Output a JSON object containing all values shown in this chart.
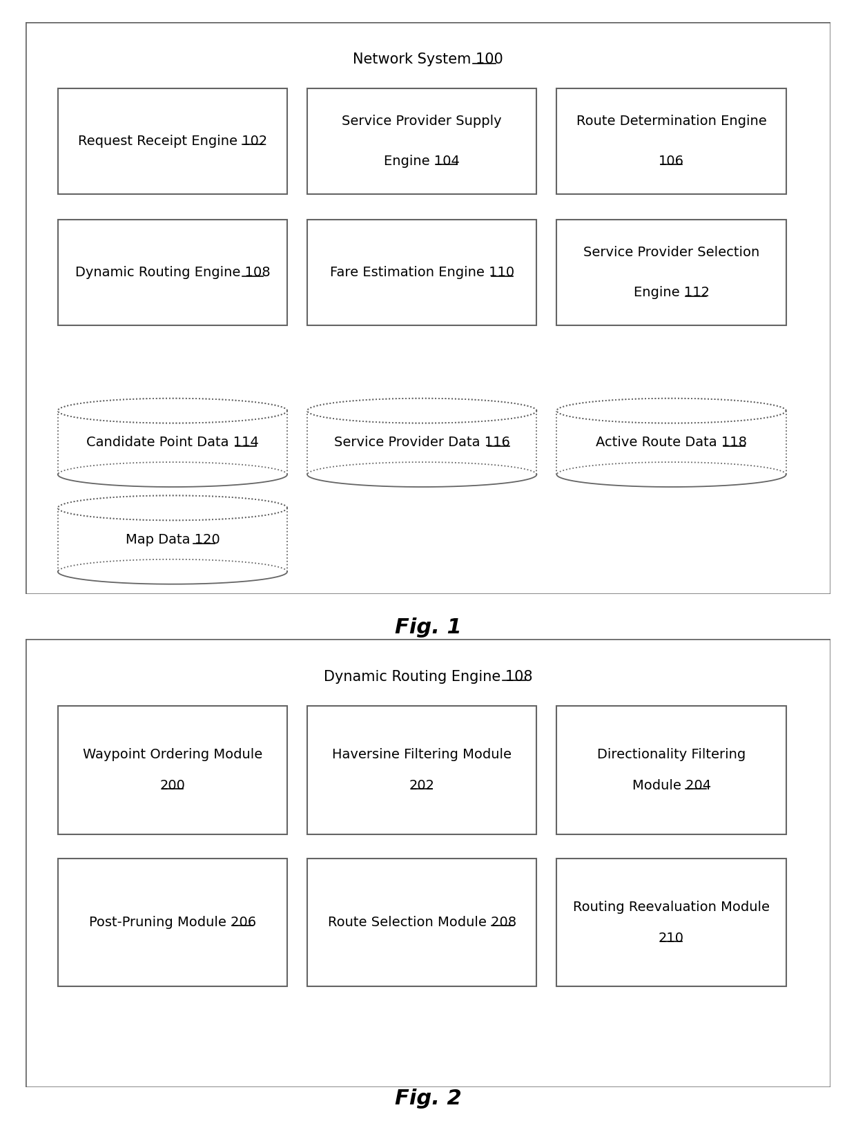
{
  "fig1_title_pre": "Network System ",
  "fig1_title_num": "100",
  "fig2_title_pre": "Dynamic Routing Engine ",
  "fig2_title_num": "108",
  "fig1_label": "Fig. 1",
  "fig2_label": "Fig. 2",
  "fig1_boxes": [
    {
      "line1": "Request Receipt Engine ",
      "num": "102",
      "line2": null,
      "row": 0,
      "col": 0
    },
    {
      "line1": "Service Provider Supply",
      "num": "104",
      "line2": "Engine ",
      "row": 0,
      "col": 1
    },
    {
      "line1": "Route Determination Engine",
      "num": "106",
      "line2": "",
      "row": 0,
      "col": 2
    },
    {
      "line1": "Dynamic Routing Engine ",
      "num": "108",
      "line2": null,
      "row": 1,
      "col": 0
    },
    {
      "line1": "Fare Estimation Engine ",
      "num": "110",
      "line2": null,
      "row": 1,
      "col": 1
    },
    {
      "line1": "Service Provider Selection",
      "num": "112",
      "line2": "Engine ",
      "row": 1,
      "col": 2
    }
  ],
  "fig1_cylinders": [
    {
      "label": "Candidate Point Data ",
      "num": "114",
      "row": 0,
      "col": 0
    },
    {
      "label": "Service Provider Data ",
      "num": "116",
      "row": 0,
      "col": 1
    },
    {
      "label": "Active Route Data ",
      "num": "118",
      "row": 0,
      "col": 2
    },
    {
      "label": "Map Data ",
      "num": "120",
      "row": 1,
      "col": 0
    }
  ],
  "fig2_boxes": [
    {
      "line1": "Waypoint Ordering Module",
      "num": "200",
      "line2": "",
      "row": 0,
      "col": 0
    },
    {
      "line1": "Haversine Filtering Module",
      "num": "202",
      "line2": "",
      "row": 0,
      "col": 1
    },
    {
      "line1": "Directionality Filtering",
      "num": "204",
      "line2": "Module ",
      "row": 0,
      "col": 2
    },
    {
      "line1": "Post-Pruning Module ",
      "num": "206",
      "line2": null,
      "row": 1,
      "col": 0
    },
    {
      "line1": "Route Selection Module ",
      "num": "208",
      "line2": null,
      "row": 1,
      "col": 1
    },
    {
      "line1": "Routing Reevaluation Module",
      "num": "210",
      "line2": "",
      "row": 1,
      "col": 2
    }
  ],
  "bg_color": "#ffffff",
  "outer_box_color": "#ffffff",
  "box_color": "#ffffff",
  "border_color": "#646464",
  "text_color": "#000000",
  "font_size": 14,
  "title_font_size": 15,
  "fig_label_font_size": 22
}
